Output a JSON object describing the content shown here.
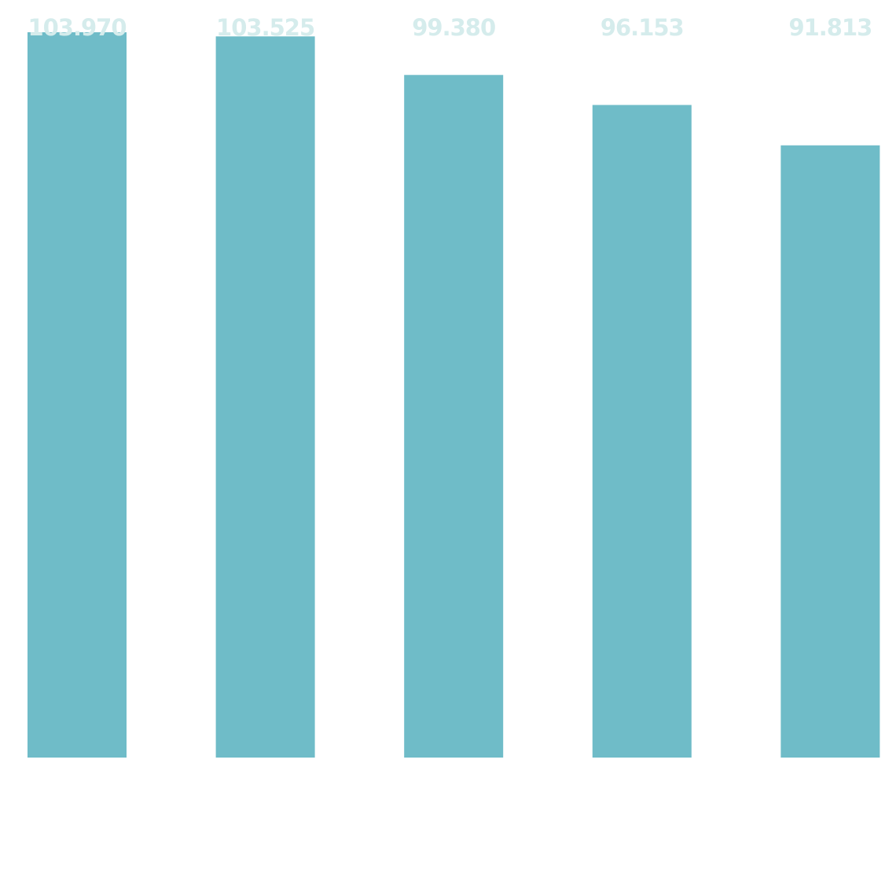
{
  "chart_data": {
    "type": "bar",
    "categories": [
      "",
      "",
      "",
      "",
      ""
    ],
    "values": [
      103.97,
      103.525,
      99.38,
      96.153,
      91.813
    ],
    "value_labels": [
      "103.970",
      "103.525",
      "99.380",
      "96.153",
      "91.813"
    ],
    "title": "",
    "xlabel": "",
    "ylabel": "",
    "ylim": [
      26,
      115
    ],
    "grid": false,
    "bar_color": "#6fbcc8",
    "label_color": "#d5ecec"
  }
}
